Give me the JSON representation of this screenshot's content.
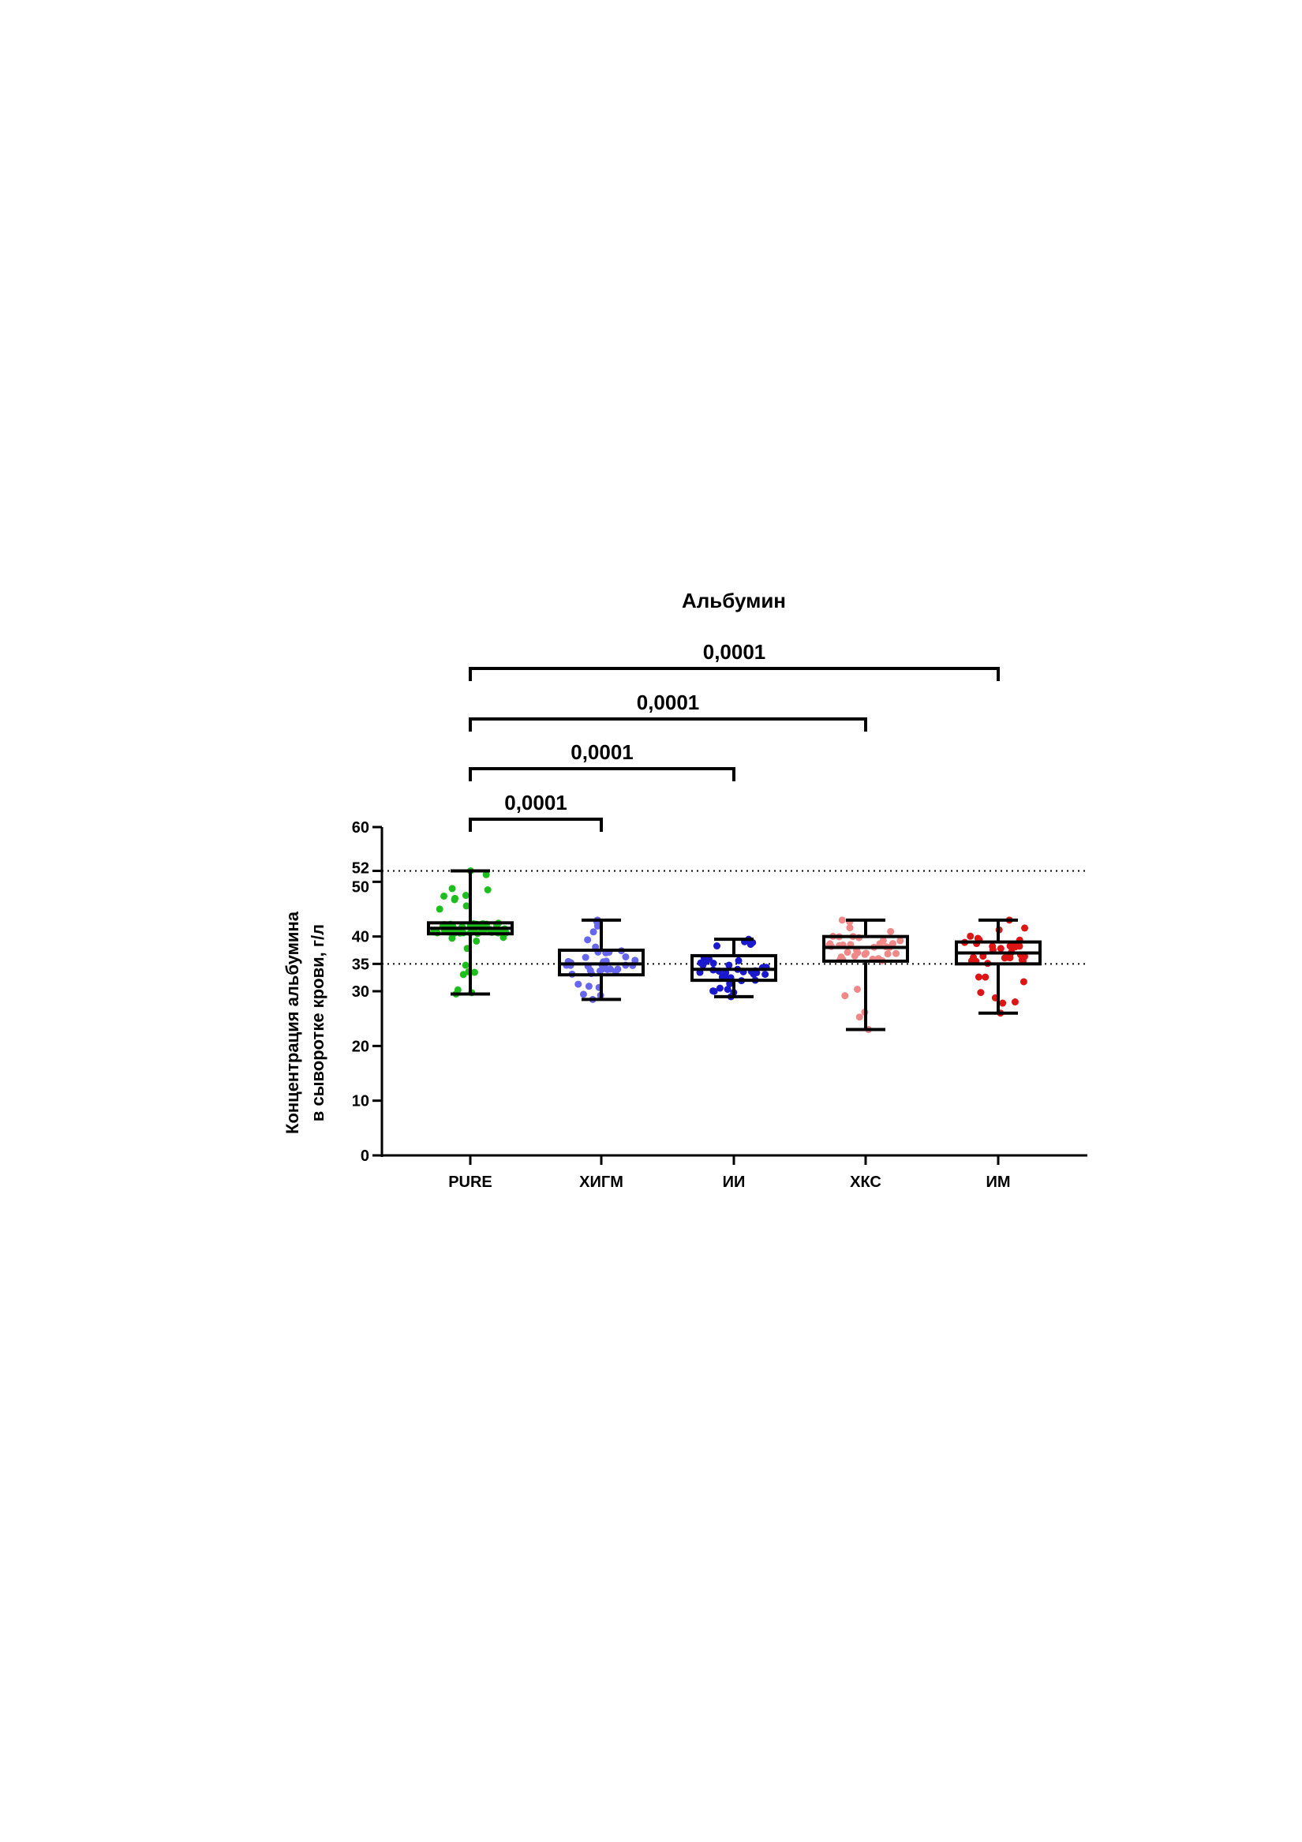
{
  "chart_data": {
    "type": "box",
    "title": "Альбумин",
    "ylabel_lines": [
      "Концентрация альбумина",
      "в сыворотке крови, г/л"
    ],
    "xlabel": "",
    "ylim": [
      0,
      60
    ],
    "yticks": [
      0,
      10,
      20,
      30,
      35,
      40,
      50,
      52,
      60
    ],
    "reference_lines": [
      52,
      35
    ],
    "categories": [
      "PURE",
      "ХИГМ",
      "ИИ",
      "ХКС",
      "ИМ"
    ],
    "colors": [
      "#1dbf1d",
      "#6666ee",
      "#1a1acc",
      "#f08888",
      "#dd1515"
    ],
    "boxes": [
      {
        "min": 29.5,
        "q1": 40.5,
        "median": 41.5,
        "q3": 42.5,
        "max": 52
      },
      {
        "min": 28.5,
        "q1": 33,
        "median": 35,
        "q3": 37.5,
        "max": 43
      },
      {
        "min": 29,
        "q1": 32,
        "median": 34,
        "q3": 36.5,
        "max": 39.5
      },
      {
        "min": 23,
        "q1": 35.5,
        "median": 38,
        "q3": 40,
        "max": 43
      },
      {
        "min": 26,
        "q1": 35,
        "median": 37,
        "q3": 39,
        "max": 43
      }
    ],
    "comparisons": [
      {
        "from": "PURE",
        "to": "ХИГМ",
        "label": "0,0001"
      },
      {
        "from": "PURE",
        "to": "ИИ",
        "label": "0,0001"
      },
      {
        "from": "PURE",
        "to": "ХКС",
        "label": "0,0001"
      },
      {
        "from": "PURE",
        "to": "ИМ",
        "label": "0,0001"
      }
    ]
  }
}
